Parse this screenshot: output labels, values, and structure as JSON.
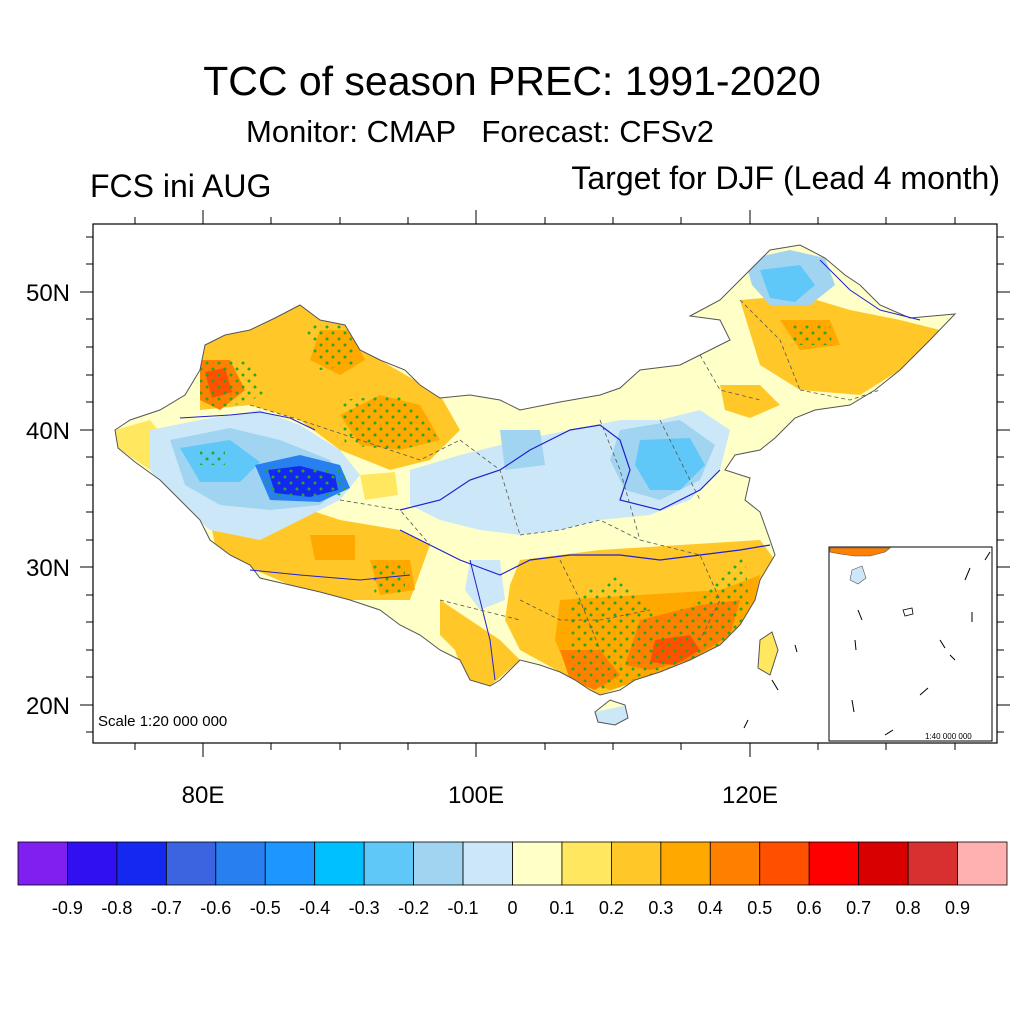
{
  "title": "TCC of season PREC: 1991-2020",
  "subtitle": "Monitor: CMAP   Forecast: CFSv2",
  "left_label": "FCS ini AUG",
  "right_label": "Target for DJF (Lead 4 month)",
  "scale_main": "Scale 1:20 000 000",
  "scale_inset": "1:40 000 000",
  "lat_labels": [
    {
      "text": "50N",
      "lat": 50
    },
    {
      "text": "40N",
      "lat": 40
    },
    {
      "text": "30N",
      "lat": 30
    },
    {
      "text": "20N",
      "lat": 20
    }
  ],
  "lon_labels": [
    {
      "text": "80E",
      "lon": 80
    },
    {
      "text": "100E",
      "lon": 100
    },
    {
      "text": "120E",
      "lon": 120
    }
  ],
  "colorbar": {
    "colors": [
      "#8020f0",
      "#3010f0",
      "#1428f0",
      "#3c64e0",
      "#2880f0",
      "#1e96ff",
      "#00c0ff",
      "#60c8f8",
      "#a0d4f0",
      "#cce8f8",
      "#ffffc8",
      "#ffe860",
      "#ffc828",
      "#ffa800",
      "#ff8000",
      "#ff5000",
      "#ff0000",
      "#d80000",
      "#d83030",
      "#ffb0b0"
    ],
    "labels": [
      "-0.9",
      "-0.8",
      "-0.7",
      "-0.6",
      "-0.5",
      "-0.4",
      "-0.3",
      "-0.2",
      "-0.1",
      "0",
      "0.1",
      "0.2",
      "0.3",
      "0.4",
      "0.5",
      "0.6",
      "0.7",
      "0.8",
      "0.9"
    ]
  }
}
